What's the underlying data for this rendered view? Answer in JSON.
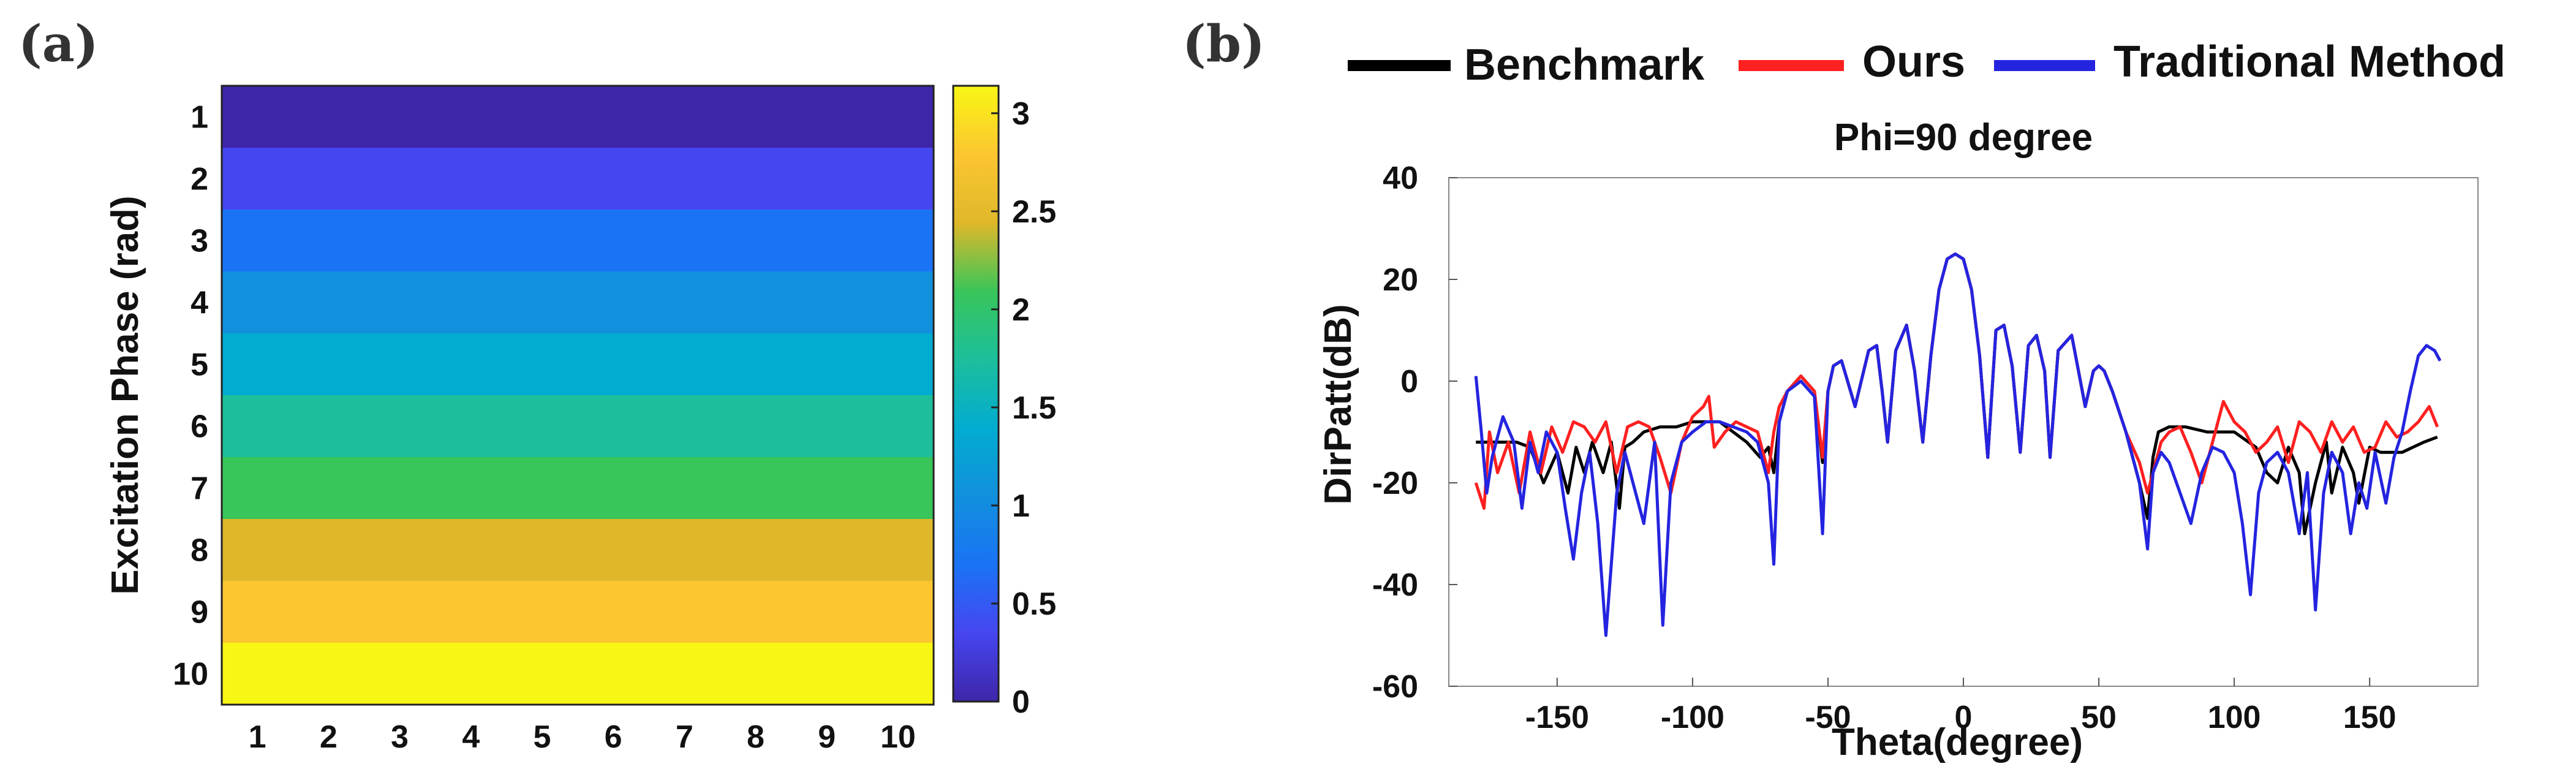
{
  "panels": {
    "a": "(a)",
    "b": "(b)"
  },
  "chart_data": [
    {
      "type": "heatmap",
      "panel": "(a)",
      "title": "",
      "xlabel": "",
      "ylabel": "Excitation Phase (rad)",
      "x_categories": [
        "1",
        "2",
        "3",
        "4",
        "5",
        "6",
        "7",
        "8",
        "9",
        "10"
      ],
      "y_categories": [
        "1",
        "2",
        "3",
        "4",
        "5",
        "6",
        "7",
        "8",
        "9",
        "10"
      ],
      "row_values": [
        0.0,
        0.35,
        0.7,
        1.05,
        1.4,
        1.75,
        2.09,
        2.44,
        2.79,
        3.14
      ],
      "row_colors": [
        "#3e26a8",
        "#4646f0",
        "#1a73f5",
        "#1190dd",
        "#02acd0",
        "#1dbf9a",
        "#38c55a",
        "#dfb82a",
        "#fcc630",
        "#f8f614"
      ],
      "colorbar": {
        "range": [
          0,
          3.14
        ],
        "ticks": [
          0,
          0.5,
          1,
          1.5,
          2,
          2.5,
          3
        ],
        "tick_labels": [
          "0",
          "0.5",
          "1",
          "1.5",
          "2",
          "2.5",
          "3"
        ],
        "stops": [
          {
            "v": 0.0,
            "color": "#3e26a8"
          },
          {
            "v": 0.35,
            "color": "#4646f0"
          },
          {
            "v": 0.7,
            "color": "#1a73f5"
          },
          {
            "v": 1.05,
            "color": "#1190dd"
          },
          {
            "v": 1.4,
            "color": "#02acd0"
          },
          {
            "v": 1.75,
            "color": "#1dbf9a"
          },
          {
            "v": 2.09,
            "color": "#38c55a"
          },
          {
            "v": 2.44,
            "color": "#dfb82a"
          },
          {
            "v": 2.79,
            "color": "#fcc630"
          },
          {
            "v": 3.14,
            "color": "#f8f614"
          }
        ]
      }
    },
    {
      "type": "line",
      "panel": "(b)",
      "title": "Phi=90 degree",
      "xlabel": "Theta(degree)",
      "ylabel": "DirPatt(dB)",
      "xlim": [
        -190,
        190
      ],
      "ylim": [
        -60,
        40
      ],
      "xticks": [
        -150,
        -100,
        -50,
        0,
        50,
        100,
        150
      ],
      "yticks": [
        40,
        20,
        0,
        -20,
        -40,
        -60
      ],
      "series": [
        {
          "name": "Benchmark",
          "color": "#000000",
          "x": [
            -180,
            -170,
            -165,
            -160,
            -155,
            -150,
            -146,
            -143,
            -140,
            -137,
            -133,
            -130,
            -127,
            -125,
            -122,
            -118,
            -112,
            -106,
            -100,
            -94,
            -90,
            -85,
            -80,
            -75,
            -72,
            -70,
            -68,
            -65,
            -60,
            -55,
            -52,
            -50,
            -48,
            -45,
            -40,
            -35,
            -32,
            -30,
            -28,
            -25,
            -21,
            -18,
            -15,
            -12,
            -9,
            -6,
            -3,
            0,
            3,
            6,
            9,
            12,
            15,
            18,
            21,
            24,
            27,
            30,
            32,
            35,
            40,
            45,
            48,
            50,
            52,
            55,
            60,
            65,
            68,
            70,
            72,
            76,
            82,
            90,
            100,
            108,
            112,
            116,
            120,
            124,
            126,
            130,
            134,
            136,
            140,
            144,
            146,
            150,
            154,
            158,
            162,
            166,
            170,
            175
          ],
          "y": [
            -12,
            -12,
            -12,
            -13,
            -20,
            -14,
            -22,
            -13,
            -18,
            -12,
            -18,
            -12,
            -25,
            -13,
            -12,
            -10,
            -9,
            -9,
            -8,
            -8,
            -8,
            -10,
            -12,
            -15,
            -13,
            -18,
            -8,
            -2,
            1,
            -2,
            -16,
            -2,
            3,
            4,
            -5,
            6,
            7,
            -2,
            -12,
            6,
            11,
            2,
            -12,
            5,
            18,
            24,
            25,
            24,
            18,
            5,
            -15,
            10,
            11,
            3,
            -14,
            7,
            9,
            2,
            -15,
            6,
            9,
            -5,
            2,
            3,
            2,
            -2,
            -10,
            -20,
            -27,
            -15,
            -10,
            -9,
            -9,
            -10,
            -10,
            -13,
            -18,
            -20,
            -13,
            -18,
            -30,
            -20,
            -12,
            -22,
            -13,
            -18,
            -24,
            -13,
            -14,
            -14,
            -14,
            -13,
            -12,
            -11
          ]
        },
        {
          "name": "Ours",
          "color": "#ff2020",
          "x": [
            -180,
            -177,
            -175,
            -172,
            -168,
            -164,
            -160,
            -156,
            -152,
            -148,
            -144,
            -140,
            -136,
            -132,
            -128,
            -124,
            -120,
            -116,
            -112,
            -108,
            -104,
            -100,
            -96,
            -94,
            -92,
            -88,
            -84,
            -80,
            -76,
            -72,
            -70,
            -68,
            -65,
            -60,
            -55,
            -52,
            -50,
            -48,
            -45,
            -40,
            -35,
            -32,
            -30,
            -28,
            -25,
            -21,
            -18,
            -15,
            -12,
            -9,
            -6,
            -3,
            0,
            3,
            6,
            9,
            12,
            15,
            18,
            21,
            24,
            27,
            30,
            32,
            35,
            40,
            45,
            48,
            50,
            52,
            55,
            60,
            65,
            68,
            70,
            73,
            76,
            80,
            84,
            88,
            92,
            96,
            100,
            104,
            108,
            112,
            116,
            120,
            124,
            128,
            132,
            136,
            140,
            144,
            148,
            152,
            156,
            160,
            164,
            168,
            172,
            175
          ],
          "y": [
            -20,
            -25,
            -10,
            -18,
            -12,
            -22,
            -10,
            -18,
            -9,
            -14,
            -8,
            -9,
            -12,
            -8,
            -18,
            -9,
            -8,
            -9,
            -15,
            -22,
            -12,
            -7,
            -5,
            -3,
            -13,
            -10,
            -8,
            -9,
            -10,
            -18,
            -10,
            -5,
            -2,
            1,
            -2,
            -15,
            -2,
            3,
            4,
            -5,
            6,
            7,
            -2,
            -12,
            6,
            11,
            2,
            -12,
            5,
            18,
            24,
            25,
            24,
            18,
            5,
            -15,
            10,
            11,
            3,
            -14,
            7,
            9,
            2,
            -15,
            6,
            9,
            -5,
            2,
            3,
            2,
            -2,
            -10,
            -16,
            -22,
            -18,
            -12,
            -10,
            -9,
            -14,
            -20,
            -12,
            -4,
            -8,
            -10,
            -14,
            -12,
            -9,
            -16,
            -8,
            -10,
            -14,
            -8,
            -12,
            -9,
            -14,
            -13,
            -8,
            -11,
            -10,
            -8,
            -5,
            -9
          ]
        },
        {
          "name": "Traditional Method",
          "color": "#2424e0",
          "x": [
            -180,
            -178,
            -176,
            -174,
            -170,
            -166,
            -163,
            -160,
            -157,
            -154,
            -150,
            -147,
            -144,
            -141,
            -138,
            -135,
            -132,
            -128,
            -125,
            -122,
            -118,
            -114,
            -111,
            -108,
            -104,
            -100,
            -95,
            -90,
            -85,
            -80,
            -76,
            -72,
            -70,
            -68,
            -65,
            -60,
            -55,
            -52,
            -50,
            -48,
            -45,
            -40,
            -35,
            -32,
            -30,
            -28,
            -25,
            -21,
            -18,
            -15,
            -12,
            -9,
            -6,
            -3,
            0,
            3,
            6,
            9,
            12,
            15,
            18,
            21,
            24,
            27,
            30,
            32,
            35,
            40,
            45,
            48,
            50,
            52,
            55,
            60,
            65,
            68,
            70,
            73,
            76,
            80,
            84,
            88,
            92,
            96,
            100,
            103,
            106,
            109,
            112,
            116,
            120,
            124,
            127,
            130,
            133,
            136,
            140,
            143,
            146,
            149,
            152,
            156,
            159,
            162,
            165,
            168,
            171,
            174,
            176
          ],
          "y": [
            1,
            -10,
            -22,
            -15,
            -7,
            -12,
            -25,
            -12,
            -18,
            -10,
            -14,
            -25,
            -35,
            -22,
            -14,
            -28,
            -50,
            -22,
            -14,
            -20,
            -28,
            -12,
            -48,
            -20,
            -12,
            -10,
            -8,
            -8,
            -9,
            -10,
            -12,
            -20,
            -36,
            -8,
            -2,
            0,
            -3,
            -30,
            -2,
            3,
            4,
            -5,
            6,
            7,
            -2,
            -12,
            6,
            11,
            2,
            -12,
            5,
            18,
            24,
            25,
            24,
            18,
            5,
            -15,
            10,
            11,
            3,
            -14,
            7,
            9,
            2,
            -15,
            6,
            9,
            -5,
            2,
            3,
            2,
            -2,
            -10,
            -20,
            -33,
            -18,
            -14,
            -16,
            -22,
            -28,
            -18,
            -13,
            -14,
            -18,
            -28,
            -42,
            -22,
            -16,
            -14,
            -18,
            -30,
            -18,
            -45,
            -22,
            -14,
            -18,
            -30,
            -20,
            -25,
            -14,
            -24,
            -15,
            -10,
            -2,
            5,
            7,
            6,
            4
          ]
        }
      ]
    }
  ]
}
